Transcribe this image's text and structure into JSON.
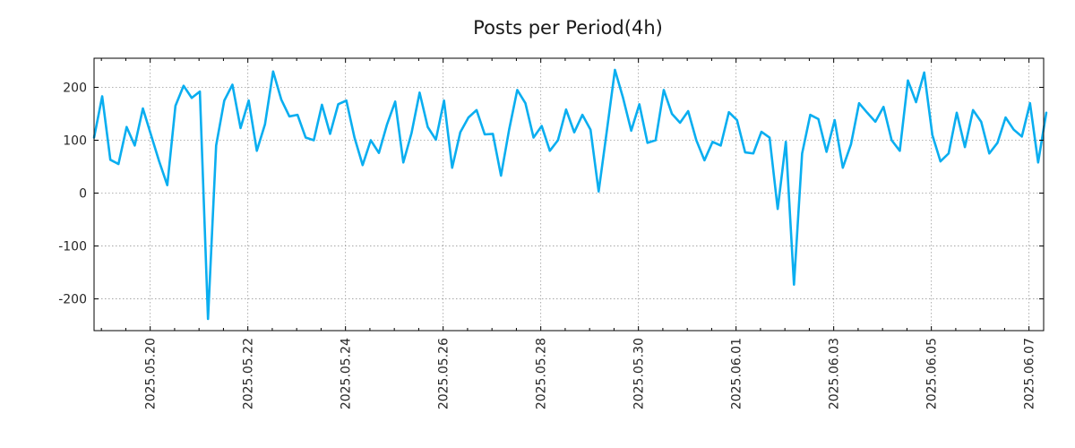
{
  "chart_data": {
    "type": "line",
    "title": "Posts per Period(4h)",
    "xlabel": "",
    "ylabel": "",
    "x_range_days": [
      -1.15,
      18.3
    ],
    "ylim": [
      -260,
      255
    ],
    "grid": true,
    "line_color": "#0aaef0",
    "y_ticks": [
      200,
      100,
      0,
      -100,
      -200
    ],
    "y_tick_labels": [
      "200",
      "100",
      "0",
      "-100",
      "-200"
    ],
    "x_ticks": [
      {
        "label": "2025.05.20",
        "day": 0
      },
      {
        "label": "2025.05.22",
        "day": 2
      },
      {
        "label": "2025.05.24",
        "day": 4
      },
      {
        "label": "2025.05.26",
        "day": 6
      },
      {
        "label": "2025.05.28",
        "day": 8
      },
      {
        "label": "2025.05.30",
        "day": 10
      },
      {
        "label": "2025.06.01",
        "day": 12
      },
      {
        "label": "2025.06.03",
        "day": 14
      },
      {
        "label": "2025.06.05",
        "day": 16
      },
      {
        "label": "2025.06.07",
        "day": 18
      }
    ],
    "minor_ticks_per_interval": 4,
    "series": [
      {
        "name": "posts",
        "x_start_day": -1.15,
        "x_step_days": 0.1667,
        "values": [
          105,
          183,
          63,
          55,
          125,
          90,
          160,
          110,
          60,
          15,
          165,
          203,
          180,
          192,
          -238,
          90,
          175,
          205,
          123,
          175,
          80,
          130,
          230,
          177,
          145,
          148,
          105,
          100,
          167,
          112,
          168,
          175,
          105,
          53,
          100,
          76,
          130,
          173,
          58,
          113,
          190,
          125,
          101,
          175,
          48,
          115,
          143,
          157,
          111,
          112,
          33,
          120,
          195,
          170,
          105,
          127,
          80,
          100,
          158,
          115,
          148,
          120,
          3,
          117,
          233,
          180,
          118,
          168,
          95,
          100,
          195,
          150,
          133,
          155,
          100,
          62,
          97,
          90,
          153,
          138,
          77,
          75,
          116,
          105,
          -30,
          97,
          -173,
          75,
          148,
          140,
          78,
          138,
          48,
          92,
          170,
          152,
          135,
          163,
          100,
          80,
          213,
          172,
          228,
          110,
          60,
          75,
          152,
          87,
          157,
          135,
          75,
          95,
          143,
          120,
          107,
          170,
          58,
          152
        ]
      }
    ]
  }
}
